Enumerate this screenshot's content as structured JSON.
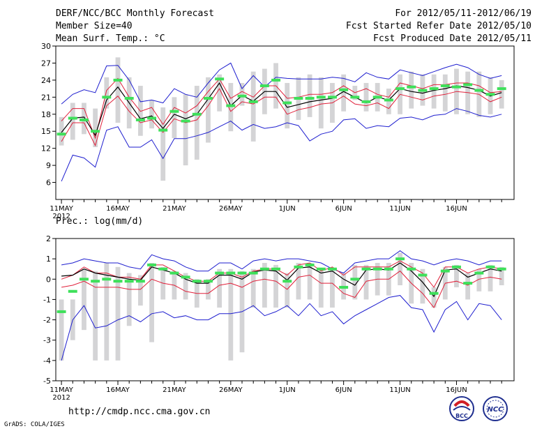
{
  "header": {
    "title": "DERF/NCC/BCC Monthly Forecast",
    "member_size": "Member Size=40",
    "variable": "Mean Surf. Temp.: °C",
    "period": "For 2012/05/11-2012/06/19",
    "started": "Fcst Started Refer Date 2012/05/10",
    "produced": "Fcst Produced Date 2012/05/11"
  },
  "footer": {
    "url": "http://cmdp.ncc.cma.gov.cn",
    "grads": "GrADS: COLA/IGES",
    "logo_bcc": "BCC",
    "logo_ncc": "NCC"
  },
  "colors": {
    "envelope": "#1e1ecf",
    "range": "#e0203a",
    "mean": "#000000",
    "median": "#3ee05a",
    "box": "#d4d4d6"
  },
  "chart_data": [
    {
      "type": "line",
      "title": "Mean Surf. Temp.: °C",
      "ylim": [
        3,
        30
      ],
      "yticks": [
        6,
        9,
        12,
        15,
        18,
        21,
        24,
        27,
        30
      ],
      "xtick_labels": [
        "11MAY",
        "16MAY",
        "21MAY",
        "26MAY",
        "1JUN",
        "6JUN",
        "11JUN",
        "16JUN"
      ],
      "xtick_days": [
        1,
        6,
        11,
        16,
        21,
        26,
        31,
        36
      ],
      "year_label": "2012",
      "days": [
        1,
        2,
        3,
        4,
        5,
        6,
        7,
        8,
        9,
        10,
        11,
        12,
        13,
        14,
        15,
        16,
        17,
        18,
        19,
        20,
        21,
        22,
        23,
        24,
        25,
        26,
        27,
        28,
        29,
        30,
        31,
        32,
        33,
        34,
        35,
        36,
        37,
        38,
        39,
        40
      ],
      "series": [
        {
          "name": "max",
          "values": [
            19.8,
            21.5,
            22.3,
            21.8,
            26.5,
            26.6,
            24.0,
            20.2,
            20.5,
            20.0,
            22.5,
            21.5,
            21.0,
            23.5,
            25.8,
            27.0,
            22.5,
            24.8,
            22.8,
            24.5,
            24.3,
            24.2,
            24.2,
            24.2,
            24.5,
            24.3,
            23.7,
            25.3,
            24.5,
            24.2,
            25.8,
            25.3,
            24.8,
            25.5,
            26.2,
            26.8,
            26.2,
            25.0,
            24.3,
            24.8
          ]
        },
        {
          "name": "upper",
          "values": [
            16.8,
            19.0,
            19.0,
            13.8,
            22.2,
            24.3,
            21.0,
            18.5,
            19.2,
            16.2,
            19.2,
            18.2,
            19.5,
            22.0,
            24.2,
            20.8,
            22.0,
            21.0,
            23.0,
            23.0,
            20.8,
            21.0,
            21.5,
            21.5,
            21.8,
            23.0,
            21.8,
            22.5,
            21.5,
            21.0,
            23.5,
            23.0,
            22.5,
            23.2,
            23.2,
            23.5,
            23.5,
            23.0,
            21.8,
            22.0
          ]
        },
        {
          "name": "mean",
          "values": [
            14.8,
            17.3,
            17.5,
            14.3,
            20.5,
            22.8,
            20.0,
            17.2,
            17.7,
            15.5,
            18.0,
            17.2,
            18.0,
            20.7,
            23.5,
            19.5,
            21.3,
            20.3,
            22.0,
            22.0,
            19.2,
            19.7,
            20.2,
            20.5,
            20.8,
            22.0,
            21.0,
            20.0,
            21.0,
            20.5,
            22.5,
            22.0,
            21.7,
            22.2,
            22.5,
            23.0,
            22.7,
            22.2,
            21.2,
            21.8
          ]
        },
        {
          "name": "lower",
          "values": [
            13.2,
            16.5,
            16.5,
            12.5,
            19.5,
            21.2,
            18.5,
            16.5,
            17.0,
            14.8,
            17.2,
            16.5,
            17.0,
            19.5,
            22.5,
            18.5,
            20.2,
            19.8,
            21.0,
            21.0,
            18.0,
            18.8,
            19.2,
            19.8,
            20.0,
            21.2,
            19.8,
            19.5,
            20.0,
            19.0,
            21.5,
            21.0,
            20.5,
            21.2,
            21.5,
            22.0,
            21.8,
            21.5,
            20.2,
            21.0
          ]
        },
        {
          "name": "min",
          "values": [
            6.2,
            10.8,
            10.3,
            8.7,
            15.2,
            15.8,
            12.2,
            12.2,
            13.5,
            10.2,
            13.7,
            13.7,
            14.2,
            14.8,
            15.8,
            16.8,
            15.2,
            16.2,
            15.5,
            15.8,
            16.5,
            16.0,
            13.3,
            14.5,
            15.0,
            17.0,
            17.2,
            15.5,
            16.0,
            15.8,
            17.3,
            17.5,
            17.0,
            17.8,
            18.0,
            19.0,
            18.5,
            17.8,
            17.5,
            18.0
          ]
        },
        {
          "name": "median",
          "values": [
            14.5,
            17.3,
            17.0,
            15.0,
            21.0,
            24.0,
            20.8,
            17.0,
            17.3,
            15.2,
            18.5,
            16.8,
            18.0,
            20.8,
            24.2,
            19.5,
            21.2,
            20.2,
            23.0,
            24.0,
            20.0,
            20.8,
            20.8,
            21.0,
            21.0,
            22.3,
            21.0,
            20.2,
            21.0,
            20.5,
            22.5,
            22.8,
            22.2,
            22.5,
            23.0,
            22.8,
            23.2,
            22.2,
            21.5,
            22.5
          ]
        }
      ],
      "boxes": {
        "low": [
          12.5,
          13.5,
          14.5,
          12.2,
          19.0,
          16.5,
          15.5,
          14.2,
          15.5,
          6.3,
          13.8,
          9.0,
          10.0,
          13.0,
          18.5,
          15.0,
          19.5,
          13.2,
          18.0,
          19.0,
          15.5,
          17.0,
          17.5,
          15.5,
          16.5,
          18.5,
          20.5,
          18.5,
          18.5,
          18.0,
          18.0,
          19.0,
          19.5,
          19.0,
          18.5,
          18.0,
          18.0,
          17.5,
          18.0,
          19.0
        ],
        "high": [
          17.5,
          20.0,
          20.0,
          19.0,
          24.5,
          28.0,
          24.5,
          23.0,
          20.5,
          19.2,
          21.0,
          21.5,
          23.0,
          24.5,
          25.0,
          23.5,
          23.5,
          25.5,
          26.0,
          27.0,
          23.5,
          24.5,
          25.0,
          24.5,
          23.5,
          25.0,
          23.0,
          23.5,
          23.5,
          22.5,
          25.0,
          25.5,
          25.0,
          25.0,
          25.0,
          26.0,
          25.5,
          25.5,
          24.5,
          24.0
        ]
      }
    },
    {
      "type": "line",
      "title": "Prec.: log(mm/d)",
      "ylim": [
        -5,
        2
      ],
      "yticks": [
        -5,
        -4,
        -3,
        -2,
        -1,
        0,
        1,
        2
      ],
      "xtick_labels": [
        "11MAY",
        "16MAY",
        "21MAY",
        "26MAY",
        "1JUN",
        "6JUN",
        "11JUN",
        "16JUN"
      ],
      "xtick_days": [
        1,
        6,
        11,
        16,
        21,
        26,
        31,
        36
      ],
      "year_label": "2012",
      "days": [
        1,
        2,
        3,
        4,
        5,
        6,
        7,
        8,
        9,
        10,
        11,
        12,
        13,
        14,
        15,
        16,
        17,
        18,
        19,
        20,
        21,
        22,
        23,
        24,
        25,
        26,
        27,
        28,
        29,
        30,
        31,
        32,
        33,
        34,
        35,
        36,
        37,
        38,
        39,
        40
      ],
      "series": [
        {
          "name": "max",
          "values": [
            0.7,
            0.8,
            1.0,
            0.9,
            0.8,
            0.8,
            0.6,
            0.5,
            1.2,
            1.0,
            0.9,
            0.6,
            0.4,
            0.4,
            0.8,
            0.8,
            0.5,
            0.9,
            1.0,
            0.9,
            1.0,
            1.0,
            0.9,
            0.8,
            0.5,
            0.3,
            0.8,
            0.9,
            1.0,
            1.0,
            1.4,
            1.0,
            0.9,
            0.7,
            0.9,
            1.0,
            0.9,
            0.7,
            0.9,
            0.9
          ]
        },
        {
          "name": "upper",
          "values": [
            0.0,
            0.2,
            0.6,
            0.3,
            0.3,
            0.1,
            0.1,
            0.0,
            0.7,
            0.7,
            0.4,
            0.1,
            -0.1,
            -0.1,
            0.3,
            0.3,
            0.1,
            0.4,
            0.5,
            0.5,
            0.2,
            0.7,
            0.8,
            0.4,
            0.6,
            0.2,
            0.6,
            0.6,
            0.6,
            0.6,
            0.9,
            0.6,
            0.3,
            -0.4,
            0.6,
            0.6,
            0.3,
            0.5,
            0.6,
            0.5
          ]
        },
        {
          "name": "mean",
          "values": [
            0.15,
            0.2,
            0.5,
            0.3,
            0.2,
            0.1,
            0.0,
            -0.05,
            0.6,
            0.45,
            0.3,
            0.0,
            -0.2,
            -0.2,
            0.2,
            0.2,
            0.0,
            0.35,
            0.45,
            0.4,
            -0.05,
            0.55,
            0.6,
            0.3,
            0.4,
            0.0,
            -0.3,
            0.45,
            0.5,
            0.45,
            0.8,
            0.4,
            -0.15,
            -0.85,
            0.45,
            0.5,
            0.1,
            0.3,
            0.5,
            0.4
          ]
        },
        {
          "name": "lower",
          "values": [
            -0.4,
            -0.3,
            -0.1,
            -0.4,
            -0.4,
            -0.4,
            -0.5,
            -0.5,
            0.0,
            -0.2,
            -0.3,
            -0.6,
            -0.7,
            -0.7,
            -0.3,
            -0.2,
            -0.4,
            -0.1,
            0.0,
            -0.1,
            -0.5,
            0.1,
            0.2,
            -0.2,
            -0.2,
            -0.7,
            -0.9,
            -0.1,
            0.0,
            0.0,
            0.4,
            -0.2,
            -0.7,
            -1.4,
            -0.2,
            -0.1,
            -0.3,
            0.0,
            0.1,
            0.0
          ]
        },
        {
          "name": "min",
          "values": [
            -4.0,
            -2.0,
            -1.3,
            -2.4,
            -2.3,
            -2.0,
            -1.8,
            -2.1,
            -1.7,
            -1.6,
            -1.9,
            -1.8,
            -2.0,
            -2.0,
            -1.7,
            -1.7,
            -1.6,
            -1.3,
            -1.8,
            -1.6,
            -1.3,
            -1.8,
            -1.2,
            -1.8,
            -1.6,
            -2.2,
            -1.8,
            -1.5,
            -1.2,
            -0.9,
            -0.8,
            -1.4,
            -1.5,
            -2.6,
            -1.5,
            -1.1,
            -2.0,
            -1.2,
            -1.3,
            -2.0
          ]
        },
        {
          "name": "median",
          "values": [
            -1.6,
            -0.6,
            0.0,
            -0.1,
            0.0,
            -0.1,
            -0.1,
            -0.1,
            0.7,
            0.5,
            0.3,
            0.1,
            -0.1,
            -0.1,
            0.3,
            0.3,
            0.3,
            0.3,
            0.5,
            0.5,
            -0.1,
            0.6,
            0.7,
            0.5,
            0.5,
            -0.4,
            0.0,
            0.5,
            0.5,
            0.5,
            1.0,
            0.5,
            0.2,
            -0.7,
            0.4,
            0.6,
            -0.2,
            0.3,
            0.6,
            0.5
          ]
        }
      ],
      "boxes": {
        "low": [
          -4.0,
          -3.0,
          -2.5,
          -4.0,
          -4.0,
          -4.0,
          -2.3,
          -1.3,
          -3.1,
          -1.0,
          -1.0,
          -1.0,
          -1.4,
          -1.0,
          -1.4,
          -4.0,
          -3.6,
          -1.4,
          -1.4,
          -1.4,
          -1.4,
          -1.0,
          -1.0,
          -1.4,
          -1.4,
          -1.0,
          -1.0,
          -1.0,
          -0.8,
          -0.8,
          -0.3,
          -1.2,
          -1.2,
          -1.4,
          -1.0,
          -0.4,
          -1.0,
          -0.6,
          -0.6,
          -0.3
        ],
        "high": [
          -1.0,
          -1.0,
          0.5,
          0.4,
          0.8,
          0.6,
          0.3,
          0.2,
          0.8,
          0.6,
          0.4,
          0.3,
          0.0,
          0.0,
          0.5,
          0.5,
          0.4,
          0.5,
          0.8,
          0.7,
          0.3,
          0.8,
          0.8,
          0.5,
          0.5,
          0.3,
          0.7,
          0.7,
          0.8,
          0.8,
          1.3,
          0.8,
          0.5,
          -0.4,
          0.6,
          0.7,
          0.3,
          0.5,
          0.7,
          0.6
        ]
      }
    }
  ]
}
